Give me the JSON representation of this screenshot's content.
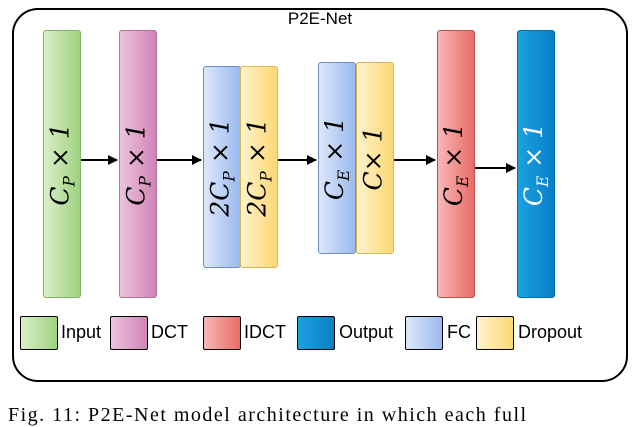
{
  "title": "P2E-Net",
  "blocks": [
    {
      "id": "input",
      "type": "input",
      "label": "C_P × 1"
    },
    {
      "id": "dct",
      "type": "dct",
      "label": "C_P × 1"
    },
    {
      "id": "fc1",
      "type": "fc",
      "label": "2C_P × 1"
    },
    {
      "id": "dropout1",
      "type": "dropout",
      "label": "2C_P × 1"
    },
    {
      "id": "fc2",
      "type": "fc",
      "label": "C_E × 1"
    },
    {
      "id": "dropout2",
      "type": "dropout",
      "label": "C_× 1"
    },
    {
      "id": "idct",
      "type": "idct",
      "label": "C_E × 1"
    },
    {
      "id": "output",
      "type": "output",
      "label": "C_E × 1"
    }
  ],
  "legend": [
    {
      "type": "input",
      "label": "Input"
    },
    {
      "type": "dct",
      "label": "DCT"
    },
    {
      "type": "idct",
      "label": "IDCT"
    },
    {
      "type": "output",
      "label": "Output"
    },
    {
      "type": "fc",
      "label": "FC"
    },
    {
      "type": "dropout",
      "label": "Dropout"
    }
  ],
  "caption": "Fig. 11: P2E-Net model architecture in which each full"
}
